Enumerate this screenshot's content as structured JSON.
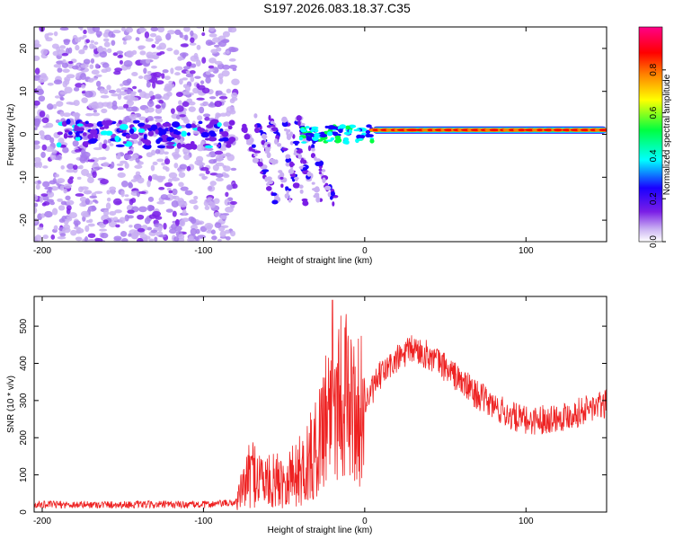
{
  "title": "S197.2026.083.18.37.C35",
  "chart_data": [
    {
      "type": "heatmap",
      "name": "spectrogram",
      "xlabel": "Height of straight line (km)",
      "ylabel": "Frequency (Hz)",
      "xlim": [
        -205,
        150
      ],
      "ylim": [
        -25,
        25
      ],
      "xticks": [
        -200,
        -100,
        0,
        100
      ],
      "yticks": [
        -20,
        -10,
        0,
        10,
        20
      ],
      "colorbar": {
        "label": "Normalized spectral amplitude",
        "range": [
          0,
          1
        ],
        "ticks": [
          "0.0",
          "0.2",
          "0.4",
          "0.6",
          "0.8"
        ],
        "tick_values": [
          0.0,
          0.2,
          0.4,
          0.6,
          0.8
        ],
        "colors": [
          "#ffffff",
          "#c9b0f2",
          "#7a1ee6",
          "#1a00ff",
          "#00ffff",
          "#00ff40",
          "#ffff00",
          "#ff8000",
          "#ff0000",
          "#ff0088"
        ]
      },
      "carrier": {
        "frequency": 1,
        "from_km": 5,
        "to_km": 150
      },
      "noise_region_km": [
        -205,
        -80
      ]
    },
    {
      "type": "line",
      "name": "snr",
      "xlabel": "Height of straight line (km)",
      "ylabel": "SNR (10 * v/v)",
      "xlim": [
        -205,
        150
      ],
      "ylim": [
        0,
        580
      ],
      "xticks": [
        -200,
        -100,
        0,
        100
      ],
      "yticks": [
        0,
        100,
        200,
        300,
        400,
        500
      ],
      "color": "#ee2222",
      "envelope": [
        {
          "x": -205,
          "y": 20
        },
        {
          "x": -100,
          "y": 20
        },
        {
          "x": -80,
          "y": 25
        },
        {
          "x": -75,
          "y": 70
        },
        {
          "x": -70,
          "y": 110
        },
        {
          "x": -60,
          "y": 80
        },
        {
          "x": -50,
          "y": 90
        },
        {
          "x": -40,
          "y": 110
        },
        {
          "x": -30,
          "y": 160
        },
        {
          "x": -25,
          "y": 260
        },
        {
          "x": -20,
          "y": 300
        },
        {
          "x": -15,
          "y": 330
        },
        {
          "x": -10,
          "y": 300
        },
        {
          "x": -5,
          "y": 260
        },
        {
          "x": 0,
          "y": 290
        },
        {
          "x": 10,
          "y": 370
        },
        {
          "x": 20,
          "y": 410
        },
        {
          "x": 30,
          "y": 440
        },
        {
          "x": 40,
          "y": 420
        },
        {
          "x": 50,
          "y": 390
        },
        {
          "x": 60,
          "y": 350
        },
        {
          "x": 70,
          "y": 315
        },
        {
          "x": 80,
          "y": 285
        },
        {
          "x": 90,
          "y": 260
        },
        {
          "x": 100,
          "y": 245
        },
        {
          "x": 110,
          "y": 250
        },
        {
          "x": 120,
          "y": 255
        },
        {
          "x": 130,
          "y": 265
        },
        {
          "x": 140,
          "y": 280
        },
        {
          "x": 150,
          "y": 290
        }
      ],
      "peak": {
        "x": -20,
        "y": 570
      }
    }
  ]
}
